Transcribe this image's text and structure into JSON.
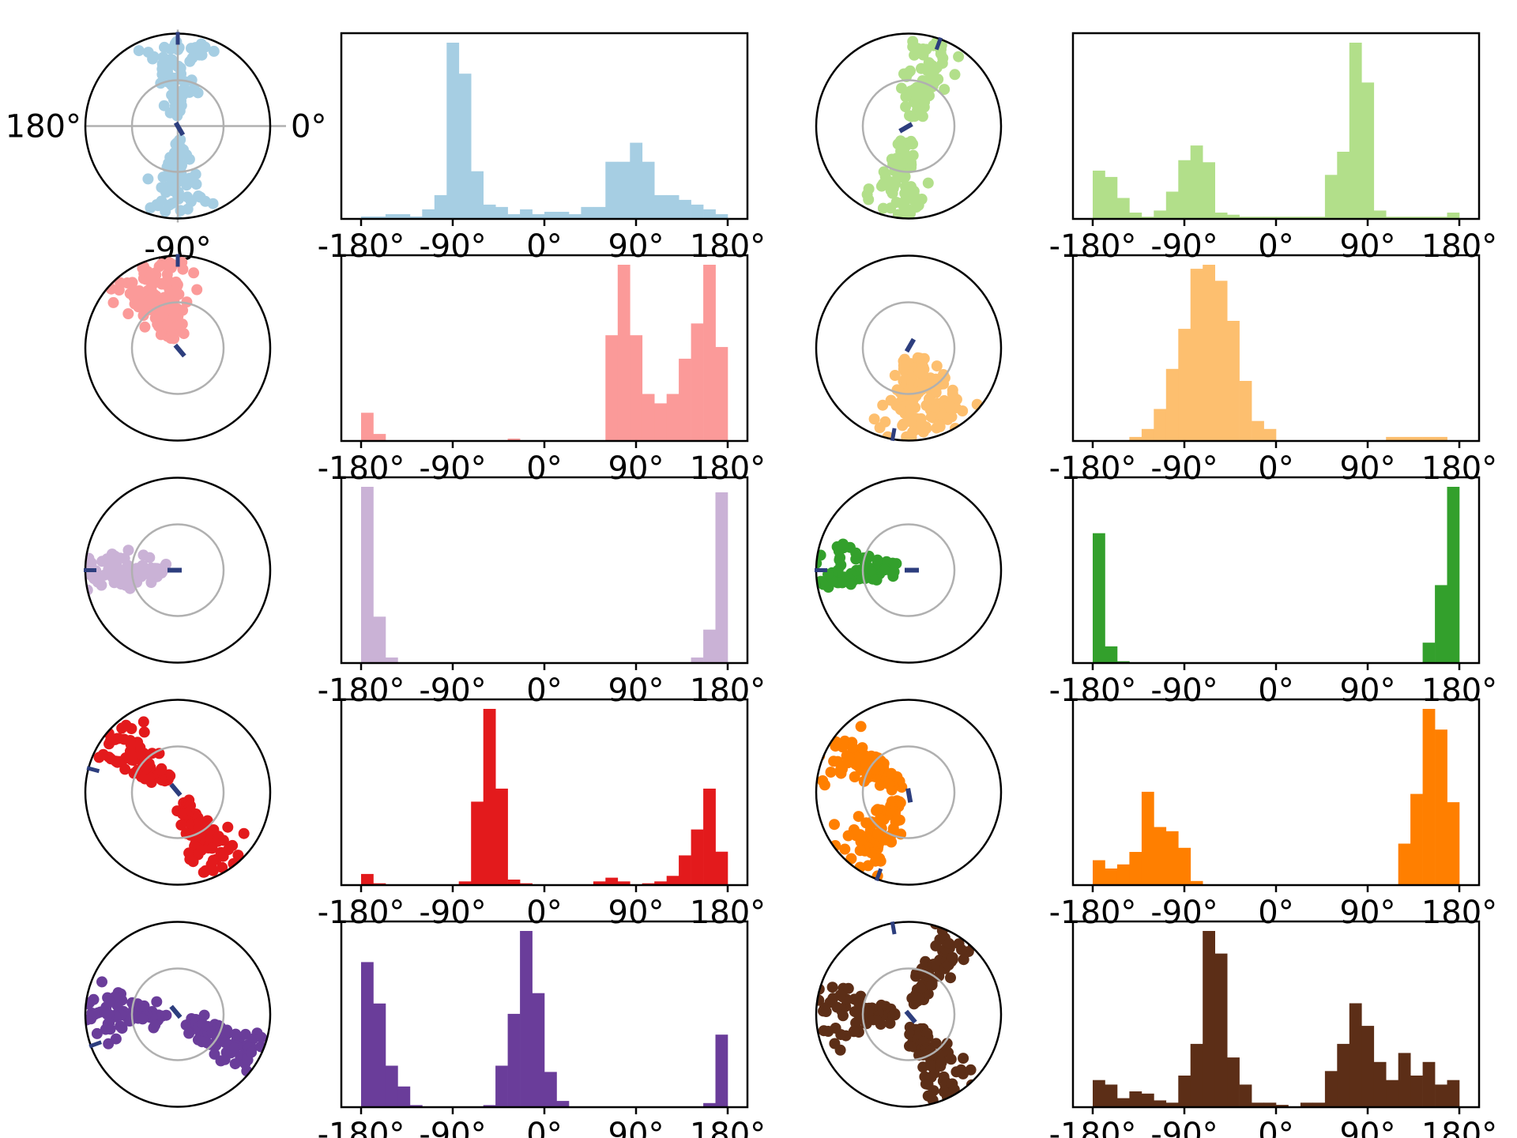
{
  "chart_data": [
    {
      "type": "polar-scatter",
      "color": "#a6cee3",
      "angle_labels": {
        "left": "180°",
        "right": "0°",
        "bottom": "-90°"
      },
      "grid": true,
      "cluster_angles_deg": [
        90,
        -90
      ],
      "inner_marker_angle_deg": -60,
      "outer_marker_angle_deg": 90
    },
    {
      "type": "bar",
      "color": "#a6cee3",
      "x_ticks": [
        "-180°",
        "-90°",
        "0°",
        "90°",
        "180°"
      ],
      "xlim": [
        -180,
        180
      ],
      "bin_edges_start": -180,
      "bin_width": 10,
      "values": [
        1,
        1,
        2,
        2,
        1,
        4,
        10,
        74,
        61,
        20,
        6,
        5,
        2,
        4,
        2,
        3,
        3,
        2,
        5,
        5,
        24,
        24,
        32,
        24,
        10,
        10,
        8,
        6,
        4,
        2
      ]
    },
    {
      "type": "polar-scatter",
      "color": "#b2df8a",
      "cluster_angles_deg": [
        70,
        -100
      ],
      "inner_marker_angle_deg": -150,
      "outer_marker_angle_deg": 70
    },
    {
      "type": "bar",
      "color": "#b2df8a",
      "x_ticks": [
        "-180°",
        "-90°",
        "0°",
        "90°",
        "180°"
      ],
      "xlim": [
        -180,
        180
      ],
      "values": [
        23,
        20,
        10,
        3,
        1,
        4,
        13,
        28,
        35,
        27,
        3,
        2,
        1,
        1,
        1,
        1,
        1,
        1,
        1,
        21,
        32,
        84,
        65,
        4,
        1,
        1,
        1,
        1,
        1,
        3
      ]
    },
    {
      "type": "polar-scatter",
      "color": "#fb9a99",
      "cluster_angles_deg": [
        120,
        100
      ],
      "inner_marker_angle_deg": -50,
      "outer_marker_angle_deg": 90
    },
    {
      "type": "bar",
      "color": "#fb9a99",
      "x_ticks": [
        "-180°",
        "-90°",
        "0°",
        "90°",
        "180°"
      ],
      "xlim": [
        -180,
        180
      ],
      "values": [
        12,
        3,
        0,
        0,
        0,
        0,
        0,
        0,
        0,
        0,
        0,
        0,
        1,
        0,
        0,
        0,
        0,
        0,
        0,
        0,
        45,
        75,
        45,
        20,
        16,
        20,
        35,
        50,
        75,
        40
      ]
    },
    {
      "type": "polar-scatter",
      "color": "#fdbf6f",
      "cluster_angles_deg": [
        -90,
        -60
      ],
      "inner_marker_angle_deg": 60,
      "outer_marker_angle_deg": -100
    },
    {
      "type": "bar",
      "color": "#fdbf6f",
      "x_ticks": [
        "-180°",
        "-90°",
        "0°",
        "90°",
        "180°"
      ],
      "xlim": [
        -180,
        180
      ],
      "values": [
        0,
        0,
        0,
        1,
        3,
        8,
        18,
        28,
        43,
        44,
        40,
        30,
        15,
        5,
        3,
        0,
        0,
        0,
        0,
        0,
        0,
        0,
        0,
        0,
        1,
        1,
        1,
        1,
        1,
        0
      ]
    },
    {
      "type": "polar-scatter",
      "color": "#cab2d6",
      "cluster_angles_deg": [
        180
      ],
      "inner_marker_angle_deg": 180,
      "outer_marker_angle_deg": 180
    },
    {
      "type": "bar",
      "color": "#cab2d6",
      "x_ticks": [
        "-180°",
        "-90°",
        "0°",
        "90°",
        "180°"
      ],
      "xlim": [
        -180,
        180
      ],
      "values": [
        95,
        25,
        3,
        0,
        0,
        0,
        0,
        0,
        0,
        0,
        0,
        0,
        0,
        0,
        0,
        0,
        0,
        0,
        0,
        0,
        0,
        0,
        0,
        0,
        0,
        0,
        0,
        3,
        18,
        92
      ]
    },
    {
      "type": "polar-scatter",
      "color": "#33a02c",
      "cluster_angles_deg": [
        180
      ],
      "inner_marker_angle_deg": 0,
      "outer_marker_angle_deg": 180
    },
    {
      "type": "bar",
      "color": "#33a02c",
      "x_ticks": [
        "-180°",
        "-90°",
        "0°",
        "90°",
        "180°"
      ],
      "xlim": [
        -180,
        180
      ],
      "values": [
        70,
        9,
        1,
        0,
        0,
        0,
        0,
        0,
        0,
        0,
        0,
        0,
        0,
        0,
        0,
        0,
        0,
        0,
        0,
        0,
        0,
        0,
        0,
        0,
        0,
        0,
        0,
        11,
        42,
        95
      ]
    },
    {
      "type": "polar-scatter",
      "color": "#e31a1c",
      "cluster_angles_deg": [
        140,
        -60
      ],
      "inner_marker_angle_deg": 130,
      "outer_marker_angle_deg": 165
    },
    {
      "type": "bar",
      "color": "#e31a1c",
      "x_ticks": [
        "-180°",
        "-90°",
        "0°",
        "90°",
        "180°"
      ],
      "xlim": [
        -180,
        180
      ],
      "values": [
        6,
        1,
        0,
        0,
        0,
        0,
        0,
        0,
        2,
        45,
        95,
        52,
        3,
        1,
        0,
        0,
        0,
        0,
        0,
        2,
        4,
        2,
        0,
        1,
        2,
        5,
        16,
        30,
        52,
        18
      ]
    },
    {
      "type": "polar-scatter",
      "color": "#ff7f00",
      "cluster_angles_deg": [
        150,
        -130
      ],
      "inner_marker_angle_deg": -80,
      "outer_marker_angle_deg": -110
    },
    {
      "type": "bar",
      "color": "#ff7f00",
      "x_ticks": [
        "-180°",
        "-90°",
        "0°",
        "90°",
        "180°"
      ],
      "xlim": [
        -180,
        180
      ],
      "values": [
        12,
        8,
        10,
        16,
        45,
        28,
        26,
        18,
        2,
        0,
        0,
        0,
        0,
        0,
        0,
        0,
        0,
        0,
        0,
        0,
        0,
        0,
        0,
        0,
        0,
        20,
        44,
        85,
        75,
        40
      ]
    },
    {
      "type": "polar-scatter",
      "color": "#6a3d9a",
      "cluster_angles_deg": [
        180,
        -30
      ],
      "inner_marker_angle_deg": 130,
      "outer_marker_angle_deg": -160
    },
    {
      "type": "bar",
      "color": "#6a3d9a",
      "x_ticks": [
        "-180°",
        "-90°",
        "0°",
        "90°",
        "180°"
      ],
      "xlim": [
        -180,
        180
      ],
      "values": [
        70,
        50,
        20,
        10,
        1,
        0,
        0,
        0,
        0,
        0,
        1,
        20,
        45,
        85,
        55,
        17,
        3,
        0,
        0,
        0,
        0,
        0,
        0,
        0,
        0,
        0,
        0,
        0,
        2,
        35
      ]
    },
    {
      "type": "polar-scatter",
      "color": "#5c2e17",
      "cluster_angles_deg": [
        60,
        -60,
        180
      ],
      "inner_marker_angle_deg": -50,
      "outer_marker_angle_deg": 100
    },
    {
      "type": "bar",
      "color": "#5c2e17",
      "x_ticks": [
        "-180°",
        "-90°",
        "0°",
        "90°",
        "180°"
      ],
      "xlim": [
        -180,
        180
      ],
      "values": [
        12,
        10,
        4,
        7,
        6,
        3,
        2,
        14,
        28,
        78,
        68,
        22,
        10,
        2,
        2,
        1,
        0,
        2,
        2,
        16,
        28,
        46,
        36,
        20,
        12,
        24,
        14,
        20,
        10,
        12
      ]
    }
  ]
}
